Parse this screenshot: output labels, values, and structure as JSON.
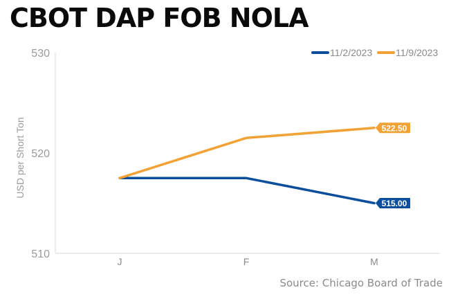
{
  "chart_data": {
    "type": "line",
    "title": "CBOT DAP FOB NOLA",
    "ylabel": "USD per Short Ton",
    "xlabel": "",
    "categories": [
      "J",
      "F",
      "M"
    ],
    "ylim": [
      510,
      530
    ],
    "yticks": [
      "530",
      "520",
      "510"
    ],
    "grid": false,
    "legend_position": "top-right",
    "series": [
      {
        "name": "11/2/2023",
        "color": "#0b4f9c",
        "values": [
          517.5,
          517.5,
          515.0
        ],
        "end_label": "515.00"
      },
      {
        "name": "11/9/2023",
        "color": "#f2a134",
        "values": [
          517.5,
          521.5,
          522.5
        ],
        "end_label": "522.50"
      }
    ],
    "source": "Source: Chicago Board of Trade"
  }
}
